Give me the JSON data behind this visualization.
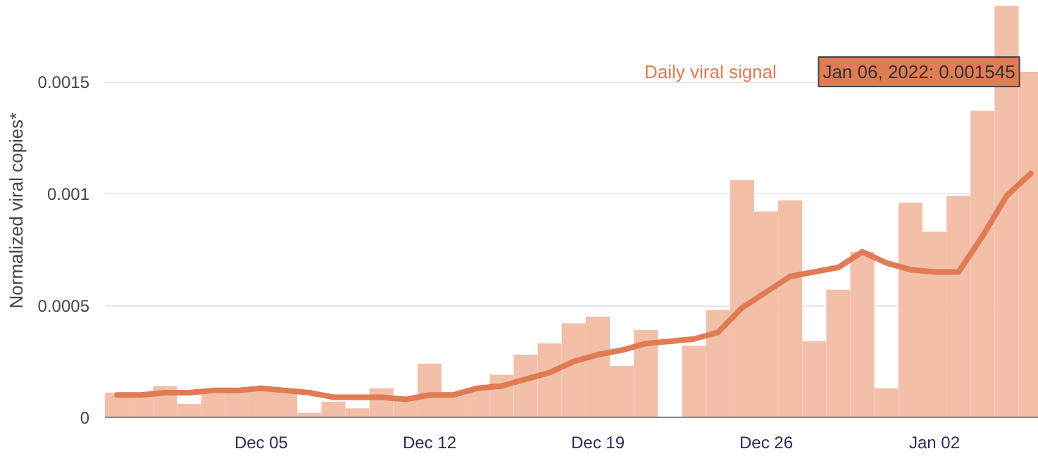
{
  "chart_data": {
    "type": "bar",
    "ylabel": "Normalized viral copies*",
    "x": [
      "2021-11-29",
      "2021-11-30",
      "2021-12-01",
      "2021-12-02",
      "2021-12-03",
      "2021-12-04",
      "2021-12-05",
      "2021-12-06",
      "2021-12-07",
      "2021-12-08",
      "2021-12-09",
      "2021-12-10",
      "2021-12-11",
      "2021-12-12",
      "2021-12-13",
      "2021-12-14",
      "2021-12-15",
      "2021-12-16",
      "2021-12-17",
      "2021-12-18",
      "2021-12-19",
      "2021-12-20",
      "2021-12-21",
      "2021-12-22",
      "2021-12-23",
      "2021-12-24",
      "2021-12-25",
      "2021-12-26",
      "2021-12-27",
      "2021-12-28",
      "2021-12-29",
      "2021-12-30",
      "2021-12-31",
      "2022-01-01",
      "2022-01-02",
      "2022-01-03",
      "2022-01-04",
      "2022-01-05",
      "2022-01-06"
    ],
    "series": [
      {
        "name": "Daily viral signal",
        "color": "#f2bfa9",
        "values": [
          0.00011,
          0.00011,
          0.00014,
          6e-05,
          0.00012,
          0.00013,
          0.00012,
          0.00013,
          2e-05,
          7e-05,
          4e-05,
          0.00013,
          9e-05,
          0.00024,
          0.0001,
          0.00013,
          0.00019,
          0.00028,
          0.00033,
          0.00042,
          0.00045,
          0.00023,
          0.00039,
          null,
          0.00032,
          0.00048,
          0.00106,
          0.00092,
          0.00097,
          0.00034,
          0.00057,
          0.00074,
          0.00013,
          0.00096,
          0.00083,
          0.00099,
          0.00137,
          0.00184,
          0.001545
        ]
      },
      {
        "type": "line",
        "color": "#e07b54",
        "values": [
          0.0001,
          0.0001,
          0.00011,
          0.00011,
          0.00012,
          0.00012,
          0.00013,
          0.00012,
          0.00011,
          9e-05,
          9e-05,
          9e-05,
          8e-05,
          0.0001,
          0.0001,
          0.00013,
          0.00014,
          0.00017,
          0.0002,
          0.00025,
          0.00028,
          0.0003,
          0.00033,
          0.00034,
          0.00035,
          0.00038,
          0.00049,
          0.00056,
          0.00063,
          0.00065,
          0.00067,
          0.00074,
          0.00069,
          0.00066,
          0.00065,
          0.00065,
          0.00081,
          0.00099,
          0.00109
        ]
      }
    ],
    "xlim": [
      "2021-11-28T12:00",
      "2022-01-06T08:00"
    ],
    "xticks": [
      {
        "value": "2021-12-05",
        "label": "Dec 05"
      },
      {
        "value": "2021-12-12",
        "label": "Dec 12"
      },
      {
        "value": "2021-12-19",
        "label": "Dec 19"
      },
      {
        "value": "2021-12-26",
        "label": "Dec 26"
      },
      {
        "value": "2022-01-02",
        "label": "Jan 02"
      }
    ],
    "ylim": [
      0,
      0.00185
    ],
    "yticks": [
      0,
      0.0005,
      0.001,
      0.0015
    ],
    "grid": "y",
    "annotations": [
      {
        "text": "Jan 06, 2022: 0.001545",
        "x": "2022-01-06",
        "y": 0.001545
      }
    ]
  }
}
